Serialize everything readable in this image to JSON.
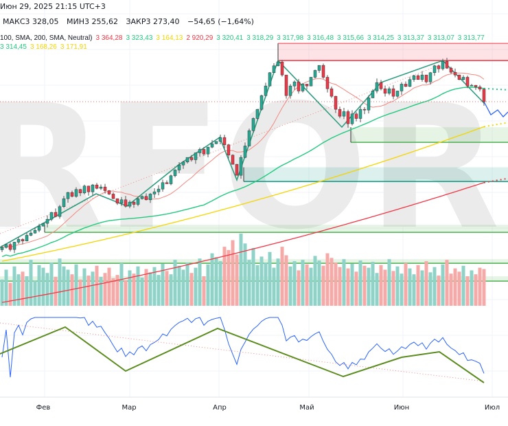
{
  "header": {
    "datetime": "Июн 29, 2025 21:15 UTC+3",
    "high": "МАКС3 328,05",
    "low": "МИН3 255,62",
    "close": "ЗАКР3 273,40",
    "change": "−54,65 (−1,64%)",
    "indicator_label": "100, SMA, 200, SMA, Neutral)",
    "indicator_values": [
      {
        "v": "3 364,28",
        "color": "#f23645"
      },
      {
        "v": "3 323,43",
        "color": "#22c97e"
      },
      {
        "v": "3 164,13",
        "color": "#f5d400"
      },
      {
        "v": "2 920,29",
        "color": "#f23645"
      },
      {
        "v": "3 320,41",
        "color": "#22c97e"
      },
      {
        "v": "3 318,29",
        "color": "#22c97e"
      },
      {
        "v": "3 317,98",
        "color": "#22c97e"
      },
      {
        "v": "3 316,48",
        "color": "#22c97e"
      },
      {
        "v": "3 315,66",
        "color": "#22c97e"
      },
      {
        "v": "3 314,25",
        "color": "#22c97e"
      },
      {
        "v": "3 313,37",
        "color": "#22c97e"
      },
      {
        "v": "3 313,07",
        "color": "#22c97e"
      },
      {
        "v": "3 313,77",
        "color": "#22c97e"
      },
      {
        "v": "3 314,45",
        "color": "#22c97e"
      },
      {
        "v": "3 168,26",
        "color": "#f5d400"
      },
      {
        "v": "3 171,91",
        "color": "#f5d400"
      }
    ]
  },
  "watermark": "RFOREX.c",
  "chart_data": {
    "type": "candlestick",
    "x_tick_labels": [
      "Фев",
      "Мар",
      "Апр",
      "Май",
      "Июн",
      "Июл"
    ],
    "closes": [
      2637,
      2650,
      2628,
      2660,
      2672,
      2665,
      2690,
      2700,
      2712,
      2730,
      2742,
      2760,
      2790,
      2772,
      2815,
      2850,
      2877,
      2860,
      2890,
      2875,
      2905,
      2880,
      2910,
      2895,
      2901,
      2885,
      2870,
      2850,
      2830,
      2845,
      2817,
      2835,
      2825,
      2850,
      2860,
      2845,
      2870,
      2880,
      2892,
      2920,
      2915,
      2950,
      2975,
      2997,
      3010,
      3030,
      3020,
      3050,
      3065,
      3045,
      3075,
      3090,
      3100,
      3117,
      3085,
      3040,
      3000,
      2952,
      3030,
      3080,
      3147,
      3200,
      3240,
      3300,
      3342,
      3400,
      3430,
      3447,
      3390,
      3300,
      3342,
      3360,
      3320,
      3350,
      3342,
      3380,
      3410,
      3432,
      3380,
      3330,
      3297,
      3240,
      3210,
      3230,
      3177,
      3220,
      3200,
      3240,
      3237,
      3290,
      3320,
      3357,
      3330,
      3310,
      3330,
      3297,
      3320,
      3350,
      3340,
      3370,
      3387,
      3370,
      3390,
      3360,
      3400,
      3430,
      3417,
      3450,
      3420,
      3402,
      3390,
      3370,
      3380,
      3342,
      3345,
      3338,
      3328.05,
      3273.4
    ],
    "last_candle": {
      "open": 3328.05,
      "high": 3328.05,
      "low": 3255.62,
      "close": 3273.4
    },
    "volume": [
      40,
      55,
      35,
      60,
      48,
      52,
      45,
      70,
      38,
      62,
      58,
      50,
      66,
      44,
      72,
      60,
      55,
      48,
      63,
      40,
      57,
      46,
      52,
      61,
      44,
      50,
      58,
      42,
      47,
      65,
      39,
      54,
      49,
      60,
      43,
      56,
      51,
      59,
      47,
      64,
      53,
      48,
      70,
      61,
      55,
      66,
      50,
      58,
      72,
      45,
      63,
      80,
      74,
      68,
      90,
      85,
      100,
      78,
      110,
      95,
      70,
      88,
      62,
      75,
      66,
      82,
      58,
      72,
      90,
      77,
      60,
      68,
      54,
      70,
      63,
      58,
      76,
      69,
      61,
      80,
      73,
      66,
      59,
      71,
      57,
      64,
      52,
      69,
      61,
      58,
      67,
      50,
      62,
      55,
      71,
      53,
      60,
      49,
      65,
      57,
      48,
      62,
      54,
      68,
      51,
      59,
      46,
      63,
      70,
      49,
      57,
      52,
      61,
      45,
      54,
      48,
      58,
      56
    ],
    "ma_lines": [
      {
        "name": "SMA 100",
        "color": "#f5d400",
        "start": 2577,
        "end": 3164.13
      },
      {
        "name": "SMA 200",
        "color": "#f23645",
        "start": 2397,
        "end": 2920.29
      }
    ],
    "zones": [
      {
        "type": "resistance",
        "top": 3528,
        "bottom": 3453,
        "color": "#f23645"
      },
      {
        "type": "support",
        "top": 3162,
        "bottom": 3096,
        "color": "#4caf50"
      },
      {
        "type": "support",
        "top": 2987,
        "bottom": 2925,
        "color": "#089981"
      },
      {
        "type": "support",
        "top": 2736,
        "bottom": 2703,
        "color": "#4caf50"
      },
      {
        "type": "support",
        "top": 2586,
        "bottom": 2568,
        "color": "#4caf50"
      },
      {
        "type": "support",
        "top": 2511,
        "bottom": 2490,
        "color": "#4caf50"
      }
    ],
    "colors": {
      "up": "#22ab94",
      "down": "#f23645",
      "vol_up": "#8fd3c8",
      "vol_down": "#f7a9a8",
      "rsi": "#2962ff",
      "zigzag": "#5b8c1e"
    }
  }
}
